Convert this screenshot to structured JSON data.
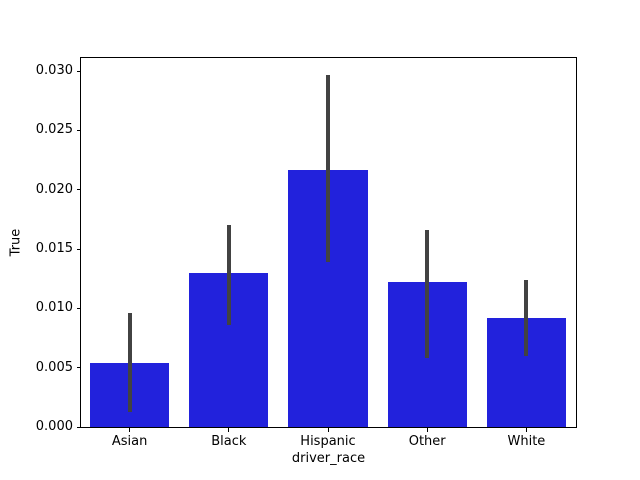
{
  "figure": {
    "background": "#ffffff"
  },
  "chart_data": {
    "type": "bar",
    "title": "",
    "xlabel": "driver_race",
    "ylabel": "True",
    "categories": [
      "Asian",
      "Black",
      "Hispanic",
      "Other",
      "White"
    ],
    "values": [
      0.0054,
      0.013,
      0.0217,
      0.0122,
      0.0092
    ],
    "error_bars": [
      [
        0.0013,
        0.0096
      ],
      [
        0.0086,
        0.017
      ],
      [
        0.0139,
        0.0297
      ],
      [
        0.0058,
        0.0166
      ],
      [
        0.006,
        0.0124
      ]
    ],
    "yticks": [
      0.0,
      0.005,
      0.01,
      0.015,
      0.02,
      0.025,
      0.03
    ],
    "ytick_labels": [
      "0.000",
      "0.005",
      "0.010",
      "0.015",
      "0.020",
      "0.025",
      "0.030"
    ],
    "ylim": [
      0,
      0.0311
    ],
    "bar_width_fraction": 0.8,
    "bar_color": "#2222dc",
    "error_color": "#424242",
    "axis_color": "#000000",
    "grid": false,
    "legend": null
  }
}
